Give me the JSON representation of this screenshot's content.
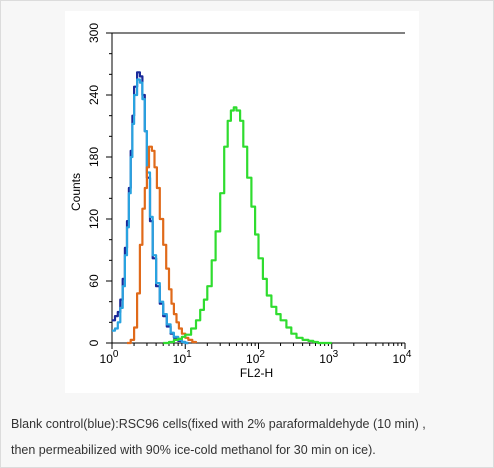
{
  "caption": {
    "line1": "Blank control(blue):RSC96 cells(fixed with 2% paraformaldehyde (10 min) ,",
    "line2": "then permeabilized with 90% ice-cold methanol for 30 min on ice)."
  },
  "chart_data": {
    "type": "line",
    "xlabel": "FL2-H",
    "ylabel": "Counts",
    "xscale": "log",
    "xlim": [
      1,
      10000
    ],
    "ylim": [
      0,
      300
    ],
    "yticks": [
      0,
      60,
      120,
      180,
      240,
      300
    ],
    "xtick_labels": [
      {
        "base": "10",
        "exp": "0"
      },
      {
        "base": "10",
        "exp": "1"
      },
      {
        "base": "10",
        "exp": "2"
      },
      {
        "base": "10",
        "exp": "3"
      },
      {
        "base": "10",
        "exp": "4"
      }
    ],
    "grid": false,
    "series": [
      {
        "color": "#1a2a9a",
        "x": [
          1.0,
          1.1,
          1.2,
          1.3,
          1.4,
          1.5,
          1.6,
          1.7,
          1.8,
          1.9,
          2.0,
          2.2,
          2.4,
          2.6,
          2.8,
          3.0,
          3.3,
          3.6,
          4.0,
          4.5,
          5.0,
          5.6,
          6.3,
          7.0,
          8.0,
          9.0,
          10.0,
          11.0
        ],
        "y": [
          22,
          26,
          30,
          42,
          62,
          92,
          118,
          150,
          186,
          220,
          248,
          262,
          258,
          240,
          205,
          160,
          118,
          82,
          55,
          38,
          26,
          16,
          9,
          5,
          2,
          1,
          0,
          0
        ]
      },
      {
        "color": "#29a3e0",
        "x": [
          1.0,
          1.1,
          1.2,
          1.3,
          1.4,
          1.5,
          1.6,
          1.7,
          1.8,
          1.9,
          2.0,
          2.2,
          2.4,
          2.6,
          2.8,
          3.0,
          3.3,
          3.6,
          4.0,
          4.5,
          5.0,
          5.6,
          6.3,
          7.0,
          8.0,
          9.0,
          10.0,
          11.0
        ],
        "y": [
          12,
          14,
          20,
          34,
          55,
          85,
          112,
          145,
          180,
          212,
          240,
          255,
          252,
          236,
          205,
          165,
          122,
          85,
          58,
          40,
          28,
          18,
          10,
          6,
          3,
          1,
          0,
          0
        ]
      },
      {
        "color": "#e06a1a",
        "x": [
          1.6,
          1.8,
          2.0,
          2.2,
          2.4,
          2.6,
          2.8,
          3.0,
          3.2,
          3.5,
          3.8,
          4.1,
          4.5,
          5.0,
          5.5,
          6.0,
          6.5,
          7.0,
          7.6,
          8.2,
          9.0,
          10.0,
          11.0,
          12.5,
          14.0
        ],
        "y": [
          0,
          3,
          15,
          48,
          95,
          130,
          150,
          170,
          190,
          186,
          170,
          150,
          120,
          95,
          72,
          52,
          38,
          28,
          20,
          14,
          9,
          5,
          3,
          1,
          0
        ]
      },
      {
        "color": "#2fdc2f",
        "x": [
          5,
          6,
          7,
          8,
          9,
          10,
          12,
          14,
          16,
          18,
          20,
          23,
          26,
          30,
          34,
          38,
          42,
          46,
          50,
          56,
          62,
          70,
          80,
          90,
          100,
          115,
          130,
          150,
          175,
          200,
          240,
          280,
          330,
          400,
          480,
          560,
          650,
          800,
          1000
        ],
        "y": [
          0,
          1,
          3,
          4,
          6,
          8,
          14,
          22,
          32,
          42,
          55,
          80,
          108,
          145,
          190,
          215,
          225,
          228,
          225,
          215,
          190,
          160,
          132,
          105,
          82,
          62,
          46,
          35,
          28,
          22,
          15,
          9,
          5,
          3,
          2,
          1,
          0,
          0,
          0
        ]
      }
    ]
  }
}
